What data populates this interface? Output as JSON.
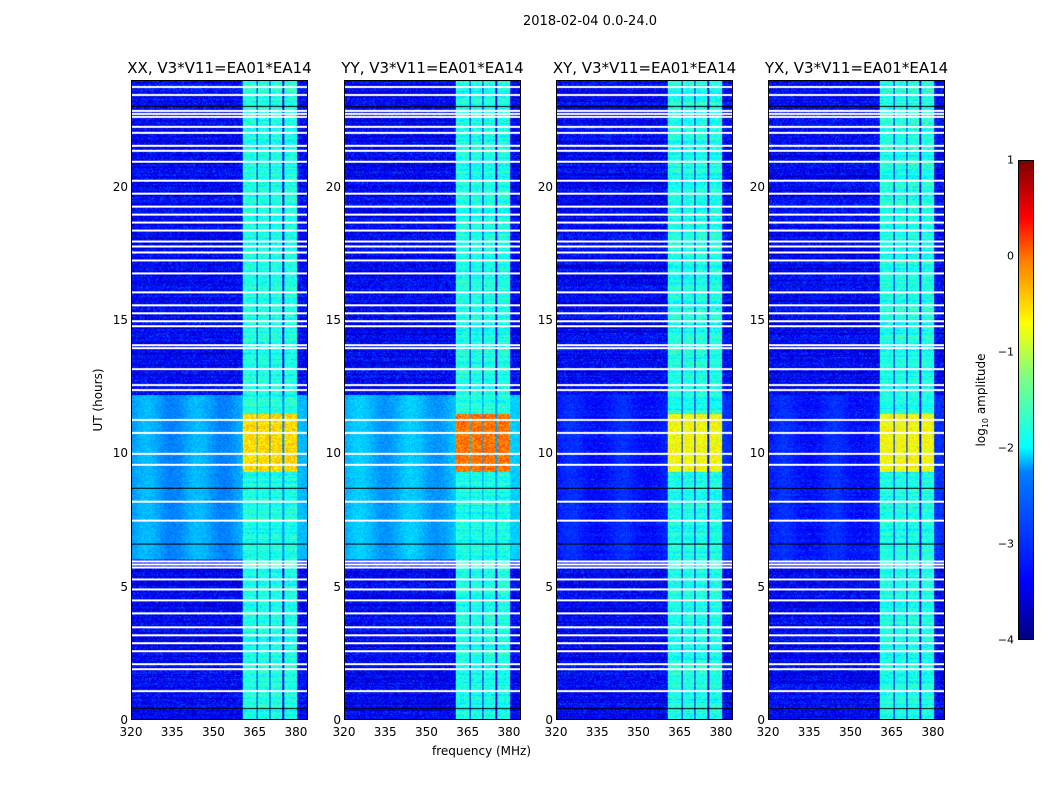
{
  "chart_data": {
    "type": "heatmap",
    "title": "2018-02-04 0.0-24.0",
    "xlabel": "frequency (MHz)",
    "ylabel": "UT (hours)",
    "xlim": [
      320,
      384.4
    ],
    "ylim": [
      0,
      24
    ],
    "xticks": [
      "320",
      "335",
      "350",
      "365",
      "380"
    ],
    "xtick_values": [
      320,
      335,
      350,
      365,
      380
    ],
    "yticks": [
      "0",
      "5",
      "10",
      "15",
      "20"
    ],
    "ytick_values": [
      0,
      5,
      10,
      15,
      20
    ],
    "panels": [
      {
        "title": "XX, V3*V11=EA01*EA14",
        "pol": "XX",
        "daytime_boost": -2.6,
        "burst_peak": -0.4
      },
      {
        "title": "YY, V3*V11=EA01*EA14",
        "pol": "YY",
        "daytime_boost": -2.5,
        "burst_peak": 0.1
      },
      {
        "title": "XY, V3*V11=EA01*EA14",
        "pol": "XY",
        "daytime_boost": -3.3,
        "burst_peak": -0.6
      },
      {
        "title": "YX, V3*V11=EA01*EA14",
        "pol": "YX",
        "daytime_boost": -3.3,
        "burst_peak": -0.6
      }
    ],
    "rfi_bands_mhz": [
      [
        360.7,
        365.5
      ],
      [
        366.2,
        370.5
      ],
      [
        370.9,
        375.3
      ],
      [
        376.0,
        380.4
      ]
    ],
    "flagged_hours": [
      1.1,
      1.9,
      2.1,
      2.6,
      2.9,
      3.2,
      3.5,
      4.0,
      4.5,
      4.9,
      5.3,
      5.75,
      5.85,
      5.95,
      7.5,
      8.2,
      9.6,
      10.0,
      10.8,
      11.3,
      12.4,
      12.6,
      13.2,
      14.0,
      14.1,
      14.8,
      15.0,
      15.3,
      15.6,
      16.1,
      16.8,
      17.3,
      17.6,
      17.8,
      18.0,
      18.4,
      18.7,
      19.0,
      19.3,
      19.8,
      20.3,
      21.0,
      21.4,
      21.6,
      22.1,
      22.3,
      22.7,
      22.8,
      22.9,
      23.5,
      23.8
    ],
    "zero_rows_hours": [
      0.4,
      6.6,
      8.7,
      23.05
    ],
    "colorbar": {
      "label": "log10 amplitude",
      "label_main": "log",
      "label_sub": "10",
      "label_rest": " amplitude",
      "range": [
        -4,
        1
      ],
      "ticks": [
        "1",
        "0",
        "−1",
        "−2",
        "−3",
        "−4"
      ],
      "tick_values": [
        1,
        0,
        -1,
        -2,
        -3,
        -4
      ],
      "colormap": "jet"
    }
  }
}
